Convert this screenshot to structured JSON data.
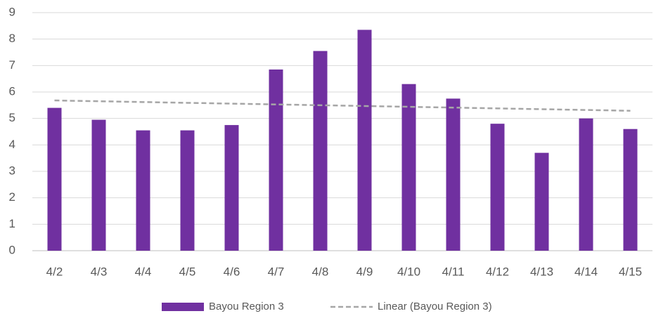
{
  "chart_data": {
    "type": "bar",
    "categories": [
      "4/2",
      "4/3",
      "4/4",
      "4/5",
      "4/6",
      "4/7",
      "4/8",
      "4/9",
      "4/10",
      "4/11",
      "4/12",
      "4/13",
      "4/14",
      "4/15"
    ],
    "series": [
      {
        "name": "Bayou Region 3",
        "type": "bar",
        "color": "#7030a0",
        "values": [
          5.4,
          4.95,
          4.55,
          4.55,
          4.75,
          6.85,
          7.55,
          8.35,
          6.3,
          5.75,
          4.8,
          3.7,
          5.0,
          4.6
        ]
      },
      {
        "name": "Linear (Bayou Region 3)",
        "type": "line",
        "dashed": true,
        "color": "#a6a6a6",
        "values": [
          5.68,
          5.65,
          5.62,
          5.59,
          5.56,
          5.53,
          5.5,
          5.47,
          5.44,
          5.41,
          5.38,
          5.35,
          5.32,
          5.29
        ]
      }
    ],
    "ylim": [
      0,
      9
    ],
    "yticks": [
      0,
      1,
      2,
      3,
      4,
      5,
      6,
      7,
      8,
      9
    ],
    "grid": true,
    "legend": "bottom"
  }
}
